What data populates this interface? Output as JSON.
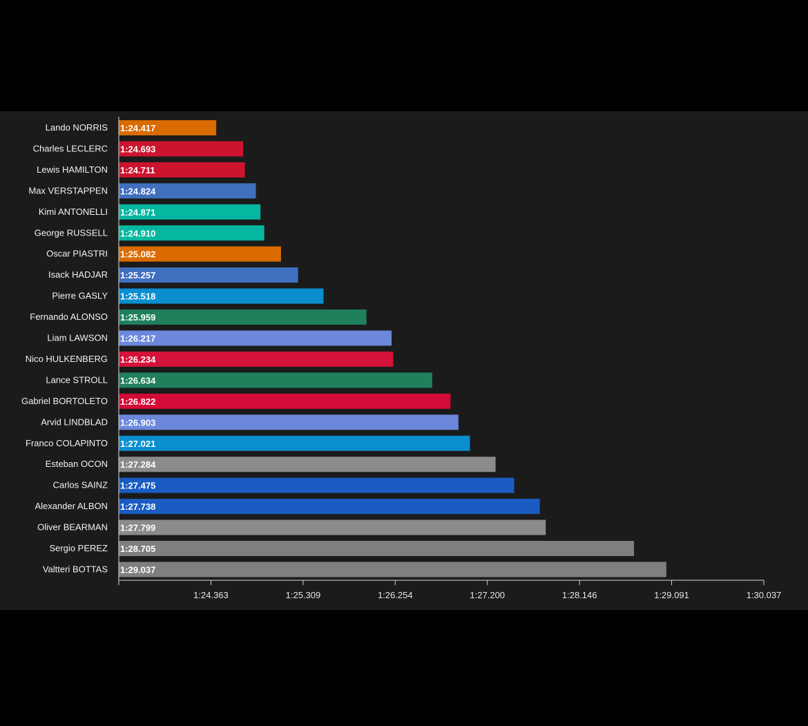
{
  "chart_data": {
    "type": "bar",
    "orientation": "horizontal",
    "title": "",
    "xlabel": "",
    "ylabel": "",
    "x_axis_origin_seconds": 83.417,
    "xlim_seconds": [
      83.417,
      90.037
    ],
    "x_ticks": [
      "1:24.363",
      "1:25.309",
      "1:26.254",
      "1:27.200",
      "1:28.146",
      "1:29.091",
      "1:30.037"
    ],
    "x_tick_seconds": [
      84.363,
      85.309,
      86.254,
      87.2,
      88.146,
      89.091,
      90.037
    ],
    "grid": false,
    "legend": "none",
    "categories": [
      "Lando NORRIS",
      "Charles LECLERC",
      "Lewis HAMILTON",
      "Max VERSTAPPEN",
      "Kimi ANTONELLI",
      "George RUSSELL",
      "Oscar PIASTRI",
      "Isack HADJAR",
      "Pierre GASLY",
      "Fernando ALONSO",
      "Liam LAWSON",
      "Nico HULKENBERG",
      "Lance STROLL",
      "Gabriel BORTOLETO",
      "Arvid LINDBLAD",
      "Franco COLAPINTO",
      "Esteban OCON",
      "Carlos SAINZ",
      "Alexander ALBON",
      "Oliver BEARMAN",
      "Sergio PEREZ",
      "Valtteri BOTTAS"
    ],
    "value_labels": [
      "1:24.417",
      "1:24.693",
      "1:24.711",
      "1:24.824",
      "1:24.871",
      "1:24.910",
      "1:25.082",
      "1:25.257",
      "1:25.518",
      "1:25.959",
      "1:26.217",
      "1:26.234",
      "1:26.634",
      "1:26.822",
      "1:26.903",
      "1:27.021",
      "1:27.284",
      "1:27.475",
      "1:27.738",
      "1:27.799",
      "1:28.705",
      "1:29.037"
    ],
    "values_seconds": [
      84.417,
      84.693,
      84.711,
      84.824,
      84.871,
      84.91,
      85.082,
      85.257,
      85.518,
      85.959,
      86.217,
      86.234,
      86.634,
      86.822,
      86.903,
      87.021,
      87.284,
      87.475,
      87.738,
      87.799,
      88.705,
      89.037
    ],
    "colors": [
      "#d96b00",
      "#cc142e",
      "#cc142e",
      "#3f6fbf",
      "#05b7a0",
      "#05b7a0",
      "#d96b00",
      "#3f6fbf",
      "#0a8ecf",
      "#20805c",
      "#6b88dc",
      "#d4123a",
      "#20805c",
      "#d40a38",
      "#6b88dc",
      "#0a8ecf",
      "#8b8b8b",
      "#1a5cc2",
      "#1a5cc2",
      "#8b8b8b",
      "#7f7f7f",
      "#7f7f7f"
    ]
  }
}
